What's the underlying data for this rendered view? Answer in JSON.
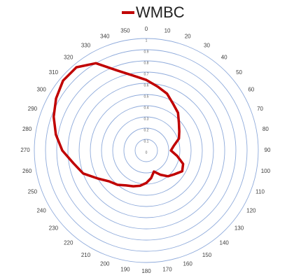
{
  "chart_data": {
    "type": "radar",
    "categories": [
      "0",
      "10",
      "20",
      "30",
      "40",
      "50",
      "60",
      "70",
      "80",
      "90",
      "100",
      "110",
      "120",
      "130",
      "140",
      "150",
      "160",
      "170",
      "180",
      "190",
      "200",
      "210",
      "220",
      "230",
      "240",
      "250",
      "260",
      "270",
      "280",
      "290",
      "300",
      "310",
      "320",
      "330",
      "340",
      "350"
    ],
    "series": [
      {
        "name": "WMBC",
        "color": "#c00000",
        "values": [
          0.63,
          0.58,
          0.54,
          0.48,
          0.44,
          0.38,
          0.34,
          0.31,
          0.25,
          0.22,
          0.28,
          0.35,
          0.37,
          0.33,
          0.3,
          0.25,
          0.2,
          0.25,
          0.29,
          0.32,
          0.34,
          0.36,
          0.4,
          0.43,
          0.5,
          0.6,
          0.66,
          0.75,
          0.82,
          0.88,
          0.93,
          0.97,
          0.97,
          0.9,
          0.76,
          0.68
        ]
      }
    ],
    "ylim": [
      0,
      1
    ],
    "yticks": [
      0,
      0.1,
      0.2,
      0.3,
      0.4,
      0.5,
      0.6,
      0.7,
      0.8,
      0.9,
      1
    ],
    "grid": true,
    "grid_color": "#8eaadb",
    "legend": "top"
  }
}
